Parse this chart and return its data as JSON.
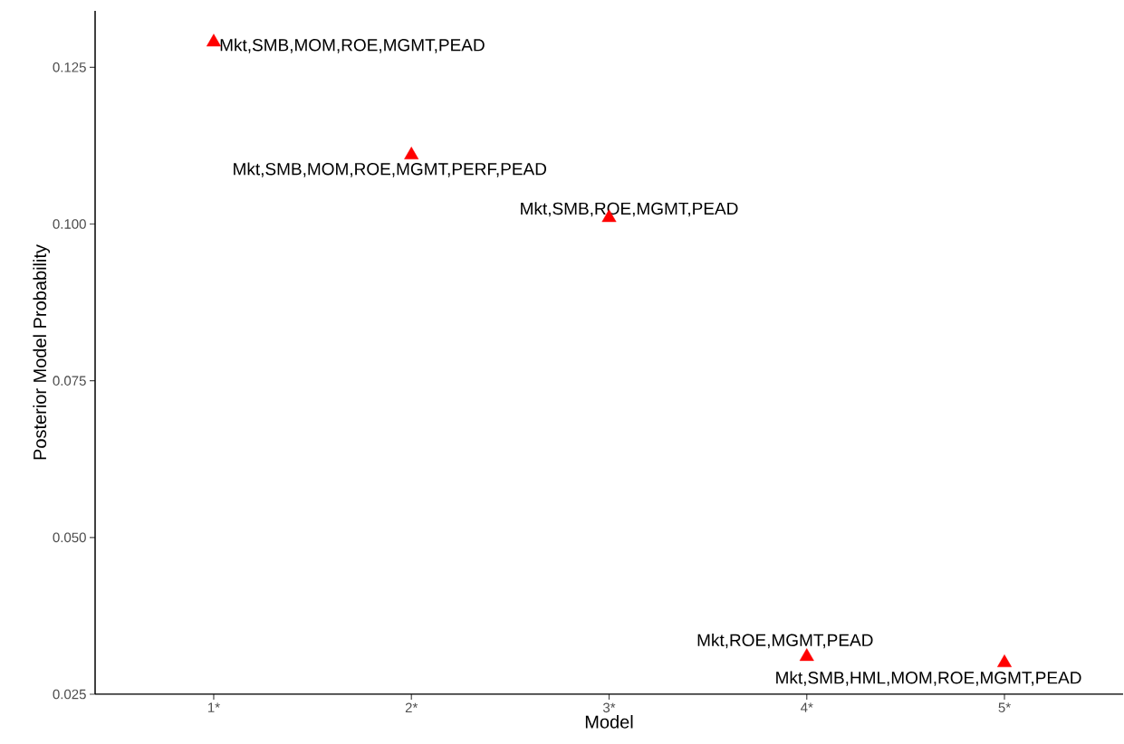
{
  "chart_data": {
    "type": "scatter",
    "xlabel": "Model",
    "ylabel": "Posterior Model Probability",
    "categories": [
      "1*",
      "2*",
      "3*",
      "4*",
      "5*"
    ],
    "series": [
      {
        "color": "#ff0000",
        "values": [
          0.129,
          0.111,
          0.101,
          0.031,
          0.03
        ]
      }
    ],
    "ylim": [
      0.025,
      0.134
    ],
    "yticks": [
      0.025,
      {
        "value": 0.05,
        "label": "0.050"
      },
      0.075,
      {
        "value": 0.1,
        "label": "0.100"
      },
      0.125
    ],
    "marker": "triangle",
    "grid": false,
    "annotations": [
      {
        "text": "Mkt,SMB,MOM,ROE,MGMT,PEAD",
        "x": "1*",
        "y": 0.129
      },
      {
        "text": "Mkt,SMB,MOM,ROE,MGMT,PERF,PEAD",
        "x": "2*",
        "y": 0.111
      },
      {
        "text": "Mkt,SMB,ROE,MGMT,PEAD",
        "x": "3*",
        "y": 0.101
      },
      {
        "text": "Mkt,ROE,MGMT,PEAD",
        "x": "4*",
        "y": 0.031
      },
      {
        "text": "Mkt,SMB,HML,MOM,ROE,MGMT,PEAD",
        "x": "5*",
        "y": 0.03
      }
    ]
  }
}
